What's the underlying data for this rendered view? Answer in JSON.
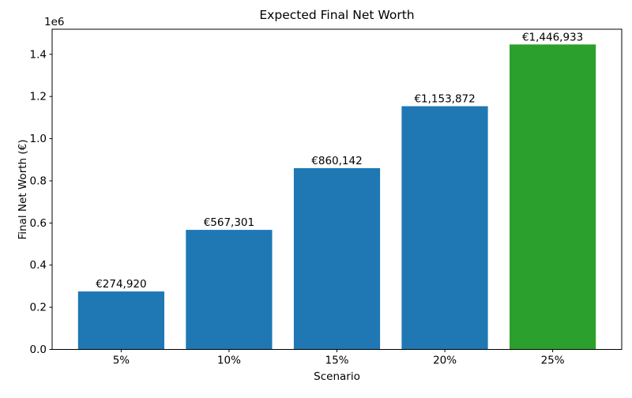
{
  "chart_data": {
    "type": "bar",
    "title": "Expected Final Net Worth",
    "xlabel": "Scenario",
    "ylabel": "Final Net Worth (€)",
    "categories": [
      "5%",
      "10%",
      "15%",
      "20%",
      "25%"
    ],
    "values": [
      274920,
      567301,
      860142,
      1153872,
      1446933
    ],
    "bar_labels": [
      "€274,920",
      "€567,301",
      "€860,142",
      "€1,153,872",
      "€1,446,933"
    ],
    "bar_colors": [
      "#1f77b4",
      "#1f77b4",
      "#1f77b4",
      "#1f77b4",
      "#2ca02c"
    ],
    "default_bar_color": "#1f77b4",
    "highlight_color": "#2ca02c",
    "axis_color": "#000000",
    "ylim": [
      0,
      1519280
    ],
    "yticks": [
      0,
      200000,
      400000,
      600000,
      800000,
      1000000,
      1200000,
      1400000
    ],
    "ytick_labels": [
      "0.0",
      "0.2",
      "0.4",
      "0.6",
      "0.8",
      "1.0",
      "1.2",
      "1.4"
    ],
    "y_offset_text": "1e6",
    "bar_width_fraction": 0.8,
    "grid": false,
    "legend": "none"
  }
}
